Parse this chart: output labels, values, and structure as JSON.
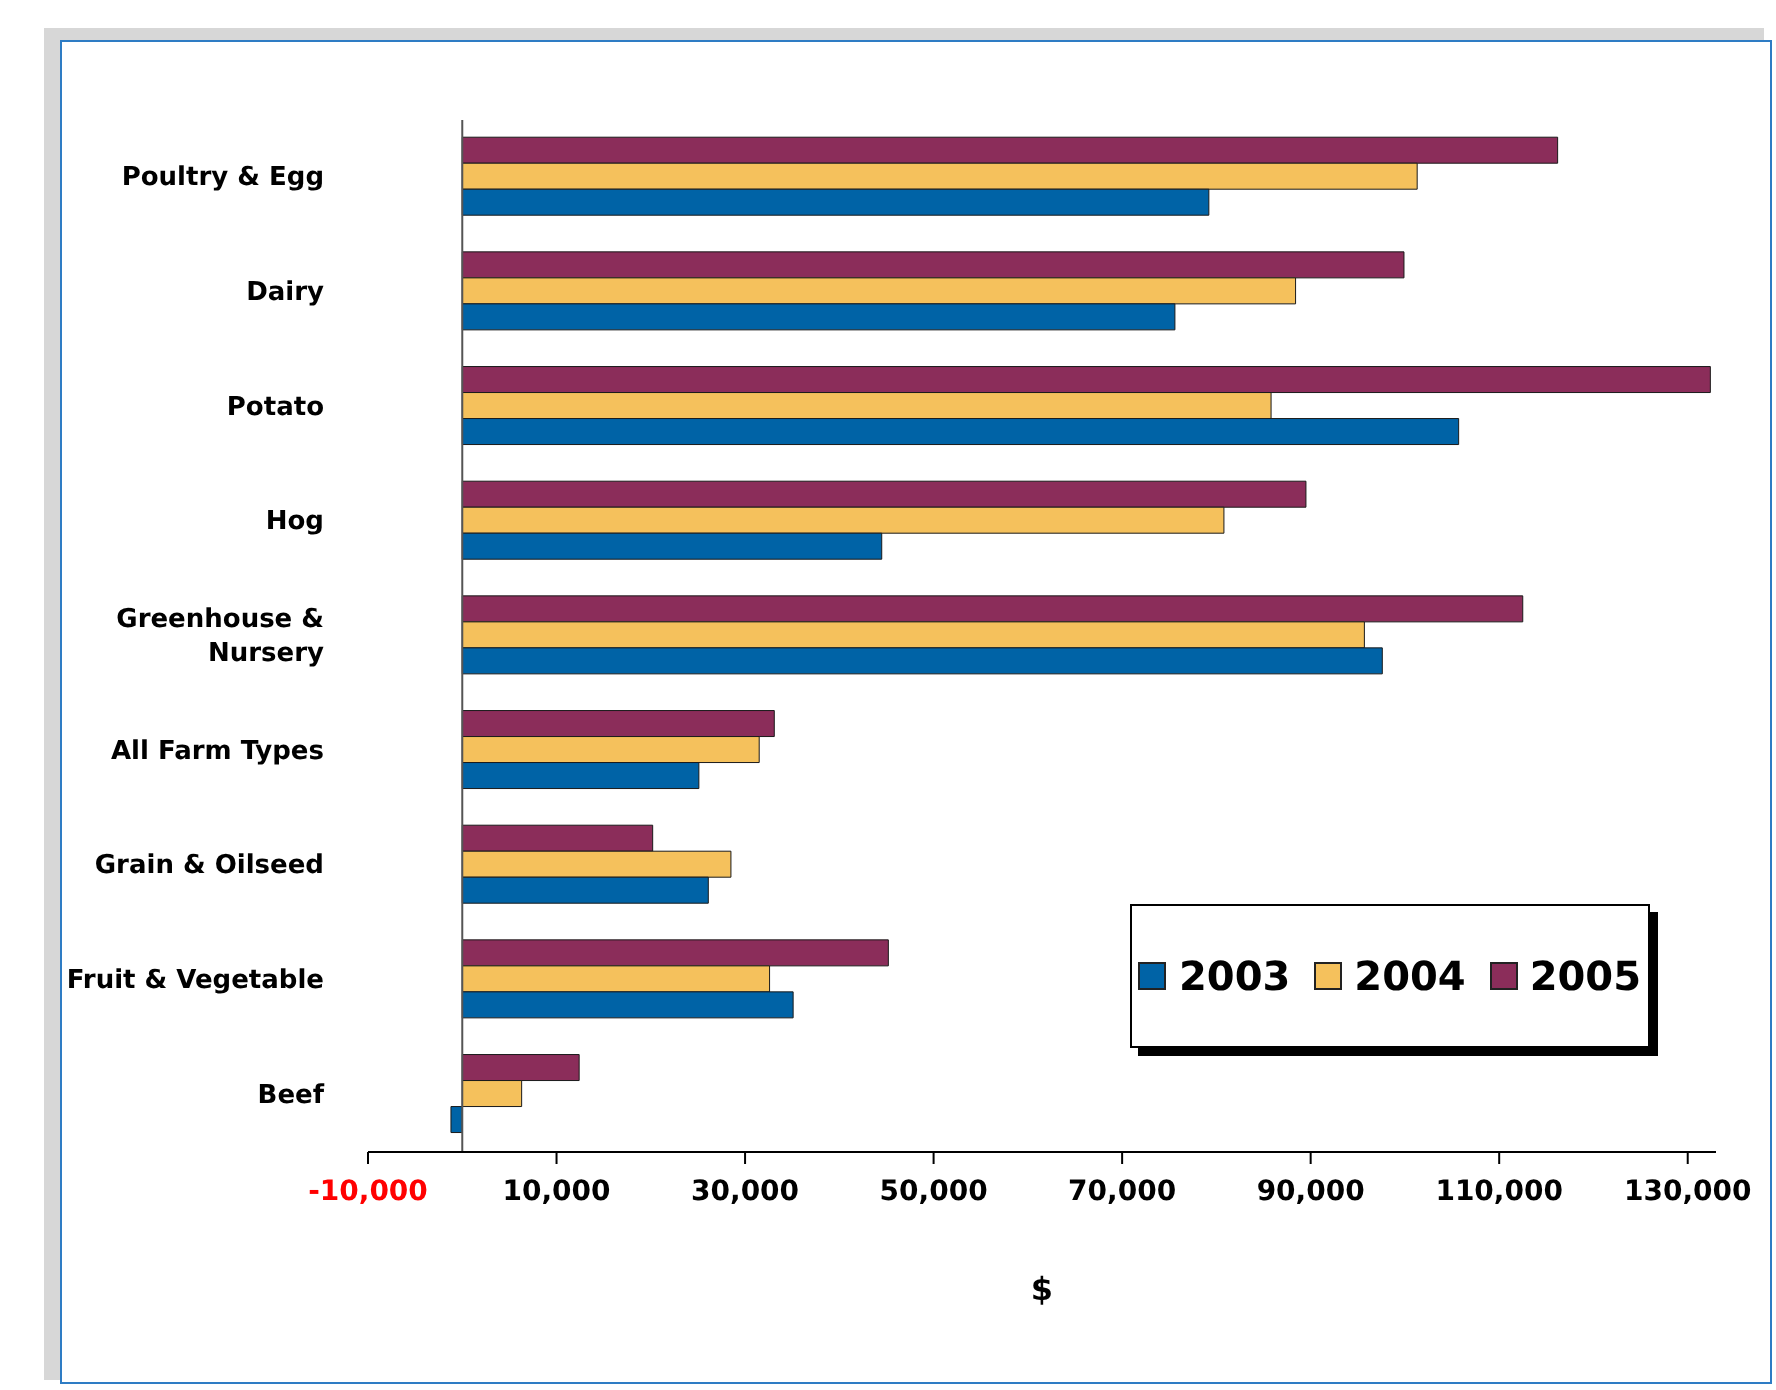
{
  "chart_data": {
    "type": "bar",
    "orientation": "horizontal",
    "xlabel": "$",
    "categories": [
      "Poultry & Egg",
      "Dairy",
      "Potato",
      "Hog",
      "Greenhouse & Nursery",
      "All Farm Types",
      "Grain & Oilseed",
      "Fruit & Vegetable",
      "Beef"
    ],
    "series": [
      {
        "name": "2003",
        "color": "#0063a6",
        "values": [
          79200,
          75600,
          105700,
          44500,
          97600,
          25100,
          26100,
          35100,
          -1200
        ]
      },
      {
        "name": "2004",
        "color": "#f5c15c",
        "values": [
          101300,
          88400,
          85800,
          80800,
          95700,
          31500,
          28500,
          32600,
          6300
        ]
      },
      {
        "name": "2005",
        "color": "#8b2d5a",
        "values": [
          116200,
          99900,
          132400,
          89500,
          112500,
          33100,
          20200,
          45200,
          12400
        ]
      }
    ],
    "xlim": [
      -10000,
      133000
    ],
    "xticks": [
      {
        "value": -10000,
        "label": "-10,000"
      },
      {
        "value": 10000,
        "label": "10,000"
      },
      {
        "value": 30000,
        "label": "30,000"
      },
      {
        "value": 50000,
        "label": "50,000"
      },
      {
        "value": 70000,
        "label": "70,000"
      },
      {
        "value": 90000,
        "label": "90,000"
      },
      {
        "value": 110000,
        "label": "110,000"
      },
      {
        "value": 130000,
        "label": "130,000"
      }
    ],
    "grid": false,
    "legend": "bottom right"
  }
}
